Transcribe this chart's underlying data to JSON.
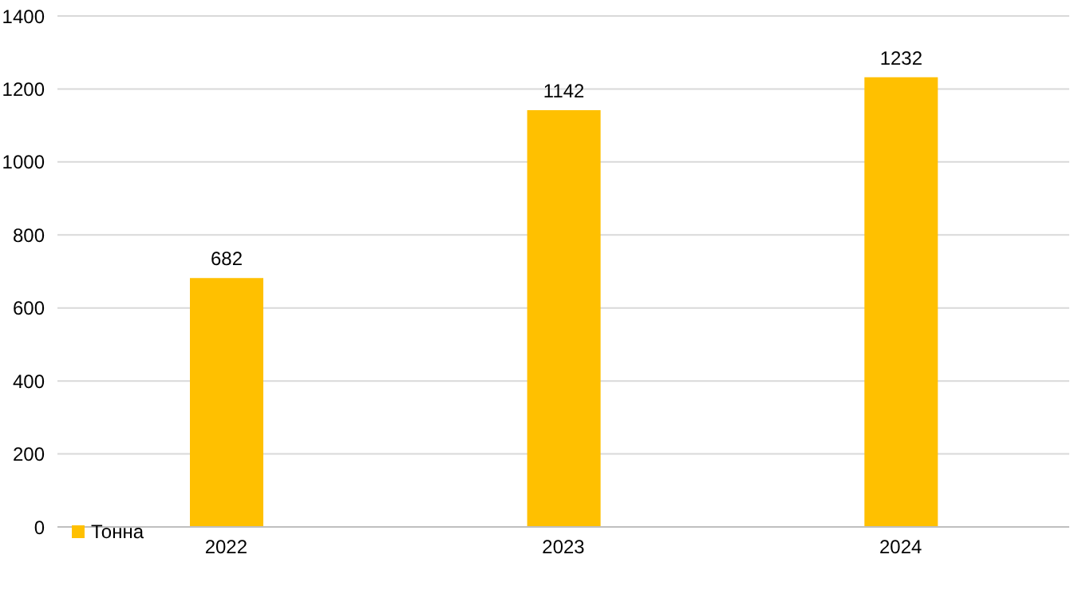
{
  "chart_data": {
    "type": "bar",
    "categories": [
      "2022",
      "2023",
      "2024"
    ],
    "series": [
      {
        "name": "Тонна",
        "color": "#ffc000",
        "values": [
          682,
          1142,
          1232
        ]
      }
    ],
    "ylim": [
      0,
      1400
    ],
    "yticks": [
      0,
      200,
      400,
      600,
      800,
      1000,
      1200,
      1400
    ],
    "grid": "y",
    "legend": "bottom left",
    "data_labels": true
  }
}
